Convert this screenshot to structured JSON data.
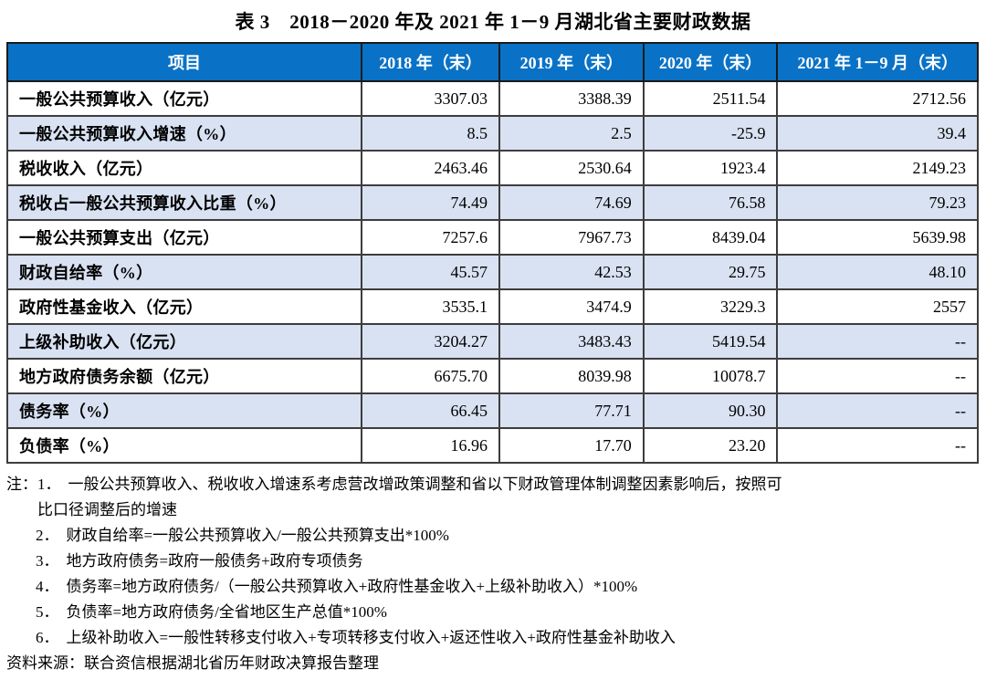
{
  "title": "表 3　2018－2020 年及 2021 年 1－9 月湖北省主要财政数据",
  "table": {
    "columns": [
      "项目",
      "2018 年（末）",
      "2019 年（末）",
      "2020 年（末）",
      "2021 年 1－9 月（末）"
    ],
    "rows": [
      {
        "label": "一般公共预算收入（亿元）",
        "values": [
          "3307.03",
          "3388.39",
          "2511.54",
          "2712.56"
        ]
      },
      {
        "label": "一般公共预算收入增速（%）",
        "values": [
          "8.5",
          "2.5",
          "-25.9",
          "39.4"
        ]
      },
      {
        "label": "税收收入（亿元）",
        "values": [
          "2463.46",
          "2530.64",
          "1923.4",
          "2149.23"
        ]
      },
      {
        "label": "税收占一般公共预算收入比重（%）",
        "values": [
          "74.49",
          "74.69",
          "76.58",
          "79.23"
        ]
      },
      {
        "label": "一般公共预算支出（亿元）",
        "values": [
          "7257.6",
          "7967.73",
          "8439.04",
          "5639.98"
        ]
      },
      {
        "label": "财政自给率（%）",
        "values": [
          "45.57",
          "42.53",
          "29.75",
          "48.10"
        ]
      },
      {
        "label": "政府性基金收入（亿元）",
        "values": [
          "3535.1",
          "3474.9",
          "3229.3",
          "2557"
        ]
      },
      {
        "label": "上级补助收入（亿元）",
        "values": [
          "3204.27",
          "3483.43",
          "5419.54",
          "--"
        ]
      },
      {
        "label": "地方政府债务余额（亿元）",
        "values": [
          "6675.70",
          "8039.98",
          "10078.7",
          "--"
        ]
      },
      {
        "label": "债务率（%）",
        "values": [
          "66.45",
          "77.71",
          "90.30",
          "--"
        ]
      },
      {
        "label": "负债率（%）",
        "values": [
          "16.96",
          "17.70",
          "23.20",
          "--"
        ]
      }
    ]
  },
  "notes": {
    "prefix": "注：",
    "items": [
      {
        "num": "1．",
        "text": "一般公共预算收入、税收收入增速系考虑营改增政策调整和省以下财政管理体制调整因素影响后，按照可",
        "cont": "比口径调整后的增速"
      },
      {
        "num": "2．",
        "text": "财政自给率=一般公共预算收入/一般公共预算支出*100%"
      },
      {
        "num": "3．",
        "text": "地方政府债务=政府一般债务+政府专项债务"
      },
      {
        "num": "4．",
        "text": "债务率=地方政府债务/（一般公共预算收入+政府性基金收入+上级补助收入）*100%"
      },
      {
        "num": "5．",
        "text": "负债率=地方政府债务/全省地区生产总值*100%"
      },
      {
        "num": "6．",
        "text": "上级补助收入=一般性转移支付收入+专项转移支付收入+返还性收入+政府性基金补助收入"
      }
    ]
  },
  "source": "资料来源：联合资信根据湖北省历年财政决算报告整理",
  "colors": {
    "header_bg": "#0A72C6",
    "header_text": "#FFFFFF",
    "alt_row_bg": "#D9E2F2",
    "border": "#3D3D3D"
  }
}
